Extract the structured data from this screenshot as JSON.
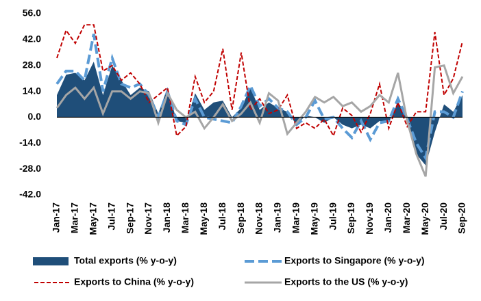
{
  "chart_data": {
    "type": "line",
    "categories": [
      "Jan-17",
      null,
      "Mar-17",
      null,
      "May-17",
      null,
      "Jul-17",
      null,
      "Sep-17",
      null,
      "Nov-17",
      null,
      "Jan-18",
      null,
      "Mar-18",
      null,
      "May-18",
      null,
      "Jul-18",
      null,
      "Sep-18",
      null,
      "Nov-18",
      null,
      "Jan-19",
      null,
      "Mar-19",
      null,
      "May-19",
      null,
      "Jul-19",
      null,
      "Sep-19",
      null,
      "Nov-19",
      null,
      "Jan-20",
      null,
      "Mar-20",
      null,
      "May-20",
      null,
      "Jul-20",
      null,
      "Sep-20"
    ],
    "ylim": [
      -42,
      56
    ],
    "yticks": [
      {
        "value": -42,
        "label": "-42.0"
      },
      {
        "value": -28,
        "label": "-28.0"
      },
      {
        "value": -14,
        "label": "-14.0"
      },
      {
        "value": 0,
        "label": "0.0"
      },
      {
        "value": 14,
        "label": "14.0"
      },
      {
        "value": 28,
        "label": "28.0"
      },
      {
        "value": 42,
        "label": "42.0"
      },
      {
        "value": 56,
        "label": "56.0"
      }
    ],
    "legend": "bottom",
    "series": [
      {
        "name": "Total exports (% y-o-y)",
        "kind": "area",
        "color": "#1f4e79",
        "values": [
          12,
          23,
          24,
          20,
          30,
          12,
          28,
          20,
          12,
          16,
          14,
          2,
          16,
          -2,
          -3,
          13,
          4,
          8,
          9,
          0,
          5,
          16,
          4,
          8,
          5,
          3,
          -4,
          1,
          0,
          -3,
          0,
          -4,
          -6,
          -4,
          -6,
          -2,
          -3,
          8,
          1,
          -20,
          -26,
          -8,
          7,
          3,
          12
        ]
      },
      {
        "name": "Exports to Singapore (% y-o-y)",
        "kind": "line",
        "dash": "long",
        "color": "#5b9bd5",
        "values": [
          18,
          25,
          25,
          20,
          45,
          14,
          32,
          18,
          16,
          18,
          12,
          0,
          14,
          -2,
          -4,
          10,
          0,
          -1,
          -2,
          -3,
          6,
          17,
          6,
          10,
          5,
          3,
          -4,
          0,
          9,
          -1,
          0,
          -6,
          -11,
          -2,
          -12,
          -3,
          -2,
          10,
          -1,
          -14,
          -22,
          3,
          3,
          0,
          14
        ]
      },
      {
        "name": "Exports to China (% y-o-y)",
        "kind": "line",
        "dash": "short",
        "color": "#c00000",
        "values": [
          32,
          47,
          40,
          50,
          50,
          25,
          28,
          20,
          24,
          18,
          8,
          12,
          16,
          -10,
          -5,
          22,
          8,
          14,
          37,
          4,
          35,
          4,
          10,
          2,
          4,
          12,
          -6,
          -3,
          -6,
          -1,
          -10,
          5,
          1,
          -8,
          2,
          18,
          -6,
          8,
          -5,
          3,
          3,
          46,
          12,
          21,
          41
        ]
      },
      {
        "name": "Exports to the US (% y-o-y)",
        "kind": "line",
        "dash": "solid",
        "color": "#a6a6a6",
        "values": [
          5,
          12,
          16,
          10,
          16,
          2,
          14,
          14,
          10,
          14,
          13,
          -3,
          13,
          4,
          0,
          3,
          -6,
          0,
          7,
          -2,
          2,
          8,
          -3,
          13,
          9,
          -9,
          -3,
          3,
          11,
          8,
          11,
          6,
          8,
          3,
          6,
          12,
          8,
          24,
          -2,
          -20,
          -32,
          27,
          28,
          13,
          22
        ]
      }
    ]
  }
}
